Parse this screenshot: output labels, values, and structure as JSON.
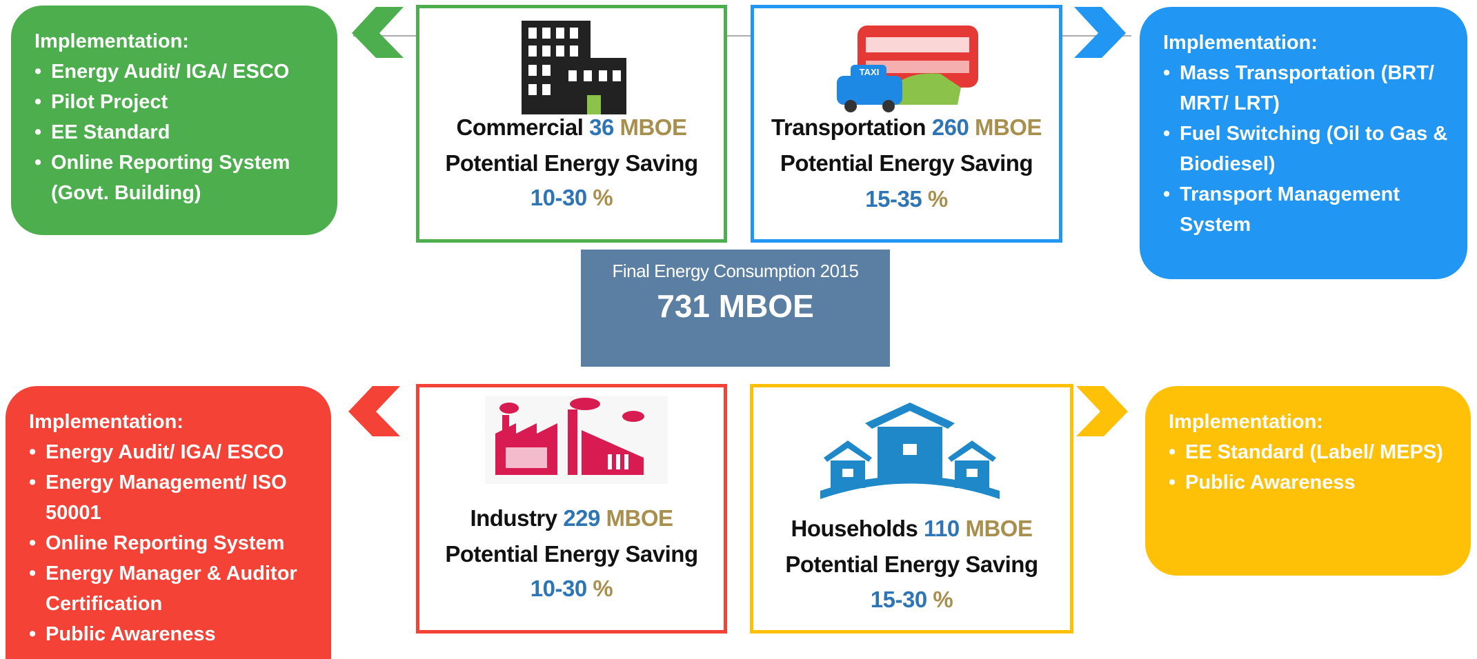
{
  "center": {
    "label": "Final Energy Consumption 2015",
    "value": "731 MBOE"
  },
  "sectors": [
    {
      "name": "Commercial",
      "amount": "36",
      "unit": "MBOE",
      "saving_label": "Potential Energy Saving",
      "range": "10-30",
      "percent": "%",
      "implementation": {
        "title": "Implementation:",
        "items": [
          "Energy Audit/ IGA/ ESCO",
          "Pilot Project",
          "EE Standard",
          "Online Reporting System (Govt. Building)"
        ]
      }
    },
    {
      "name": "Transportation",
      "amount": "260",
      "unit": "MBOE",
      "saving_label": "Potential Energy Saving",
      "range": "15-35",
      "percent": "%",
      "implementation": {
        "title": "Implementation:",
        "items": [
          "Mass Transportation (BRT/ MRT/ LRT)",
          "Fuel Switching (Oil to Gas & Biodiesel)",
          "Transport Management System"
        ]
      }
    },
    {
      "name": "Industry",
      "amount": "229",
      "unit": "MBOE",
      "saving_label": "Potential Energy Saving",
      "range": "10-30",
      "percent": "%",
      "implementation": {
        "title": "Implementation:",
        "items": [
          "Energy Audit/ IGA/ ESCO",
          "Energy Management/ ISO 50001",
          "Online Reporting System",
          "Energy Manager & Auditor Certification",
          "Public Awareness"
        ]
      }
    },
    {
      "name": "Households",
      "amount": "110",
      "unit": "MBOE",
      "saving_label": "Potential Energy Saving",
      "range": "15-30",
      "percent": "%",
      "implementation": {
        "title": "Implementation:",
        "items": [
          "EE Standard (Label/ MEPS)",
          "Public Awareness"
        ]
      }
    }
  ]
}
